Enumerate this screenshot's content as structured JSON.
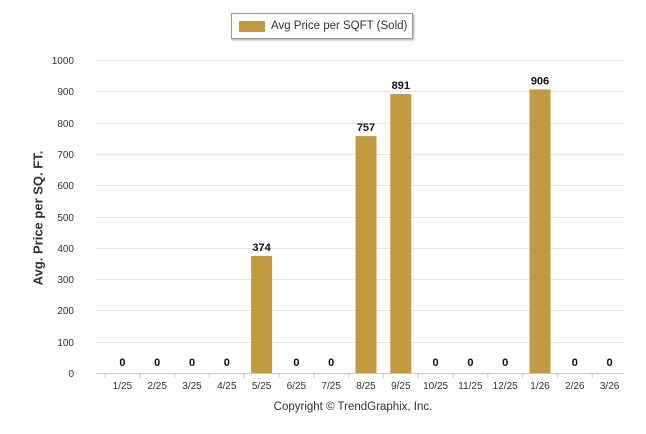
{
  "legend": {
    "label": "Avg Price per SQFT (Sold)"
  },
  "footer": {
    "text": "Copyright © TrendGraphix, Inc."
  },
  "colors": {
    "bar": "#c19b42",
    "grid": "#e4e4e4",
    "axis": "#c8c8c8",
    "text": "#333333"
  },
  "chart_data": {
    "type": "bar",
    "title": "",
    "xlabel": "",
    "ylabel": "Avg. Price per SQ. FT.",
    "ylim": [
      0,
      1000
    ],
    "yticks": [
      0,
      100,
      200,
      300,
      400,
      500,
      600,
      700,
      800,
      900,
      1000
    ],
    "categories": [
      "1/25",
      "2/25",
      "3/25",
      "4/25",
      "5/25",
      "6/25",
      "7/25",
      "8/25",
      "9/25",
      "10/25",
      "11/25",
      "12/25",
      "1/26",
      "2/26",
      "3/26"
    ],
    "series": [
      {
        "name": "Avg Price per SQFT (Sold)",
        "values": [
          0,
          0,
          0,
          0,
          374,
          0,
          0,
          757,
          891,
          0,
          0,
          0,
          906,
          0,
          0
        ]
      }
    ],
    "grid": true,
    "legend_position": "top-center"
  }
}
